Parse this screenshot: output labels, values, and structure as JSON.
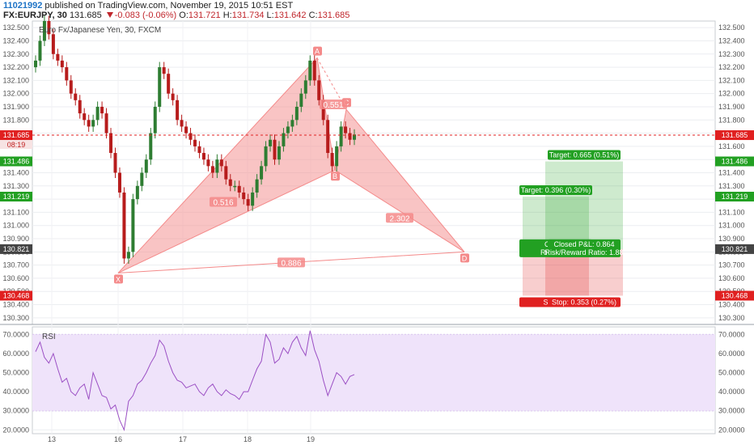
{
  "header": {
    "publisher_id": "11021992",
    "published_text": "published on TradingView.com, November 19, 2015 10:51 EST",
    "symbol": "FX:EURJPY, 30",
    "last": "131.685",
    "change": "-0.083 (-0.06%)",
    "open_label": "O:",
    "open": "131.721",
    "high_label": "H:",
    "high": "131.734",
    "low_label": "L:",
    "low": "131.642",
    "close_label": "C:",
    "close": "131.685",
    "chart_title": "Euro Fx/Japanese Yen, 30, FXCM"
  },
  "colors": {
    "up": "#2e7d32",
    "down": "#b71c1c",
    "pattern": "#f48a8a",
    "target": "#22a022",
    "stop": "#e02020",
    "rsi_line": "#9b4fc4",
    "rsi_band": "#efe3fa"
  },
  "chart_data": [
    {
      "type": "candlestick",
      "title": "Euro Fx/Japanese Yen, 30, FXCM",
      "ylim": [
        130.25,
        132.55
      ],
      "y_ticks": [
        "132.500",
        "132.400",
        "132.300",
        "132.200",
        "132.100",
        "132.000",
        "131.900",
        "131.800",
        "131.700",
        "131.600",
        "131.500",
        "131.400",
        "131.300",
        "131.200",
        "131.100",
        "131.000",
        "130.900",
        "130.800",
        "130.700",
        "130.600",
        "130.500",
        "130.400",
        "130.300"
      ],
      "x_ticks": [
        "13",
        "16",
        "17",
        "18",
        "19"
      ],
      "close_series": [
        132.25,
        132.4,
        132.55,
        132.45,
        132.3,
        132.25,
        132.2,
        132.1,
        132.0,
        131.95,
        131.85,
        131.8,
        131.75,
        131.8,
        131.9,
        131.85,
        131.7,
        131.55,
        131.4,
        131.25,
        130.75,
        130.8,
        131.2,
        131.3,
        131.4,
        131.5,
        131.7,
        131.9,
        132.2,
        132.15,
        132.0,
        131.95,
        131.8,
        131.75,
        131.7,
        131.65,
        131.6,
        131.55,
        131.5,
        131.45,
        131.4,
        131.5,
        131.45,
        131.35,
        131.3,
        131.3,
        131.25,
        131.2,
        131.15,
        131.25,
        131.35,
        131.45,
        131.6,
        131.65,
        131.5,
        131.6,
        131.7,
        131.75,
        131.8,
        131.9,
        132.0,
        132.1,
        132.25,
        132.1,
        131.95,
        131.8,
        131.55,
        131.45,
        131.6,
        131.75,
        131.7,
        131.65,
        131.69
      ],
      "price_levels": [
        {
          "label": "131.685",
          "kind": "current"
        },
        {
          "label": "131.486",
          "kind": "target"
        },
        {
          "label": "131.219",
          "kind": "target"
        },
        {
          "label": "130.821",
          "kind": "entry"
        },
        {
          "label": "130.468",
          "kind": "stop"
        }
      ],
      "countdown": "08:19",
      "pattern_points": [
        {
          "label": "X",
          "price": 130.64
        },
        {
          "label": "A",
          "price": 132.27
        },
        {
          "label": "B",
          "price": 131.42
        },
        {
          "label": "C",
          "price": 131.88
        },
        {
          "label": "D",
          "price": 130.8
        }
      ],
      "ratios": [
        "0.551",
        "0.516",
        "2.302",
        "0.886"
      ],
      "positions": [
        {
          "target_label": "Target: 0.396 (0.30%)",
          "stop_label": "Stop: 0.",
          "pnl_label": "Closed",
          "rr_label": "Risk/Rew",
          "side": "long"
        },
        {
          "target_label": "Target: 0.665 (0.51%)",
          "stop_label": "Stop: 0.353 (0.27%)",
          "pnl_label": "Closed P&L: 0.864",
          "rr_label": "Risk/Reward Ratio: 1.88",
          "side": "long"
        }
      ]
    },
    {
      "type": "line",
      "title": "RSI",
      "ylim": [
        18,
        74
      ],
      "y_ticks": [
        "70.0000",
        "60.0000",
        "50.0000",
        "40.0000",
        "30.0000",
        "20.0000"
      ],
      "band": [
        30,
        70
      ],
      "values": [
        61,
        66,
        58,
        55,
        60,
        52,
        45,
        47,
        40,
        38,
        42,
        44,
        36,
        50,
        44,
        38,
        37,
        31,
        33,
        25,
        20,
        35,
        38,
        44,
        46,
        50,
        55,
        59,
        67,
        64,
        56,
        50,
        46,
        45,
        42,
        43,
        44,
        40,
        38,
        42,
        44,
        40,
        38,
        41,
        39,
        38,
        36,
        40,
        40,
        46,
        52,
        56,
        70,
        66,
        55,
        57,
        63,
        60,
        66,
        69,
        63,
        59,
        72,
        62,
        56,
        46,
        38,
        44,
        50,
        48,
        44,
        48,
        49
      ]
    }
  ]
}
